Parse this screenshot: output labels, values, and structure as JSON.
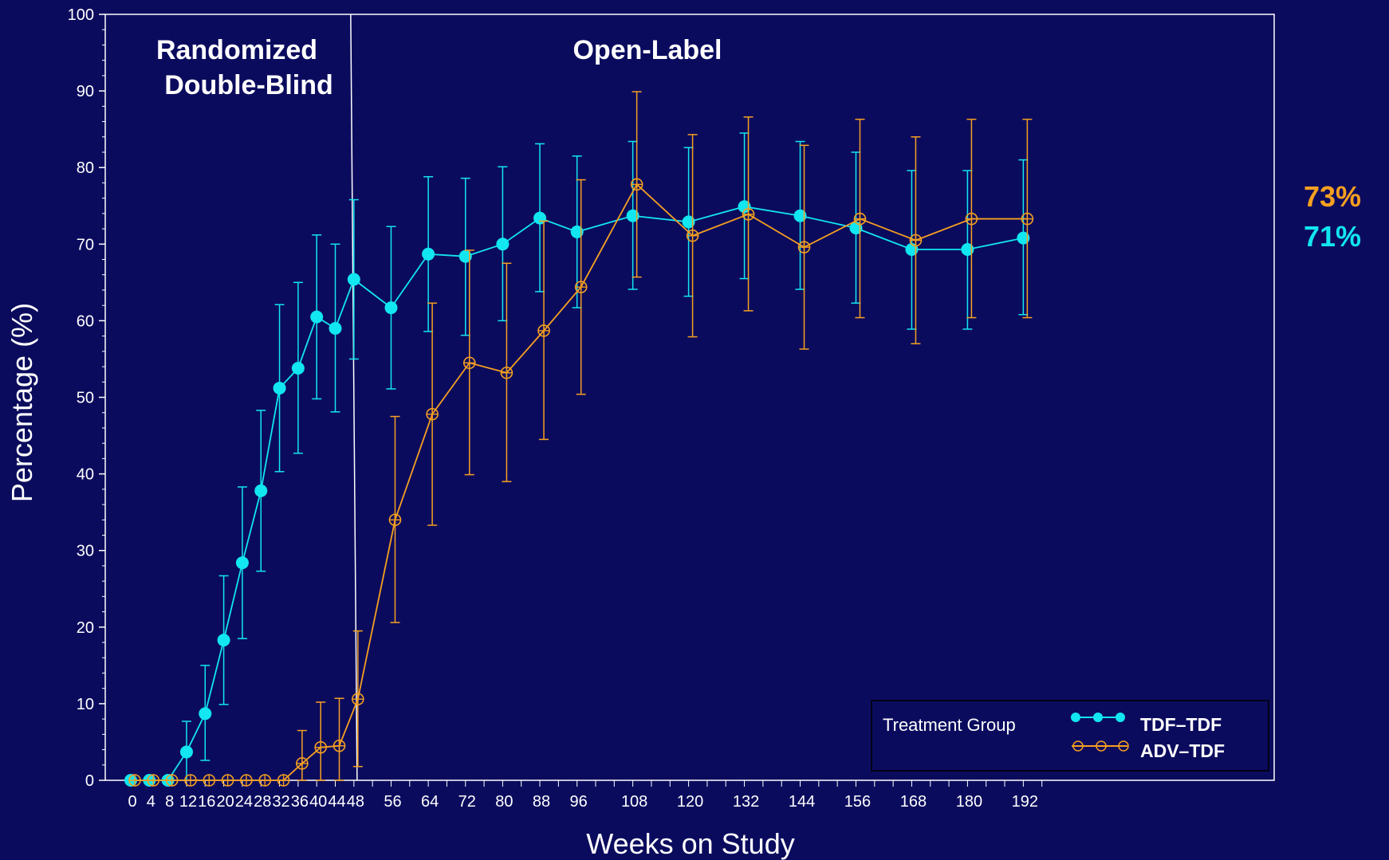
{
  "chart_data": {
    "type": "line",
    "xlabel": "Weeks on Study",
    "ylabel": "Percentage (%)",
    "ylim": [
      0,
      100
    ],
    "yticks": [
      0,
      10,
      20,
      30,
      40,
      50,
      60,
      70,
      80,
      90,
      100
    ],
    "x_tick_labels": [
      "0",
      "4",
      "8",
      "12",
      "16",
      "20",
      "24",
      "28",
      "32",
      "36",
      "40",
      "44",
      "48",
      "56",
      "64",
      "72",
      "80",
      "88",
      "96",
      "108",
      "120",
      "132",
      "144",
      "156",
      "168",
      "180",
      "192"
    ],
    "phases": [
      {
        "label_line1": "Randomized",
        "label_line2": "Double-Blind"
      },
      {
        "label_line1": "Open-Label",
        "label_line2": ""
      }
    ],
    "phase_boundary_week": 48,
    "series": [
      {
        "name": "TDF–TDF",
        "color": "#12e6f0",
        "marker": "filled-circle",
        "points": [
          {
            "x": 0,
            "y": 0,
            "lo": null,
            "hi": null
          },
          {
            "x": 4,
            "y": 0,
            "lo": null,
            "hi": null
          },
          {
            "x": 8,
            "y": 0,
            "lo": null,
            "hi": null
          },
          {
            "x": 12,
            "y": 3.7,
            "lo": 0,
            "hi": 7.7
          },
          {
            "x": 16,
            "y": 8.7,
            "lo": 2.6,
            "hi": 15
          },
          {
            "x": 20,
            "y": 18.3,
            "lo": 9.9,
            "hi": 26.7
          },
          {
            "x": 24,
            "y": 28.4,
            "lo": 18.5,
            "hi": 38.3
          },
          {
            "x": 28,
            "y": 37.8,
            "lo": 27.3,
            "hi": 48.3
          },
          {
            "x": 32,
            "y": 51.2,
            "lo": 40.3,
            "hi": 62.1
          },
          {
            "x": 36,
            "y": 53.8,
            "lo": 42.7,
            "hi": 65
          },
          {
            "x": 40,
            "y": 60.5,
            "lo": 49.8,
            "hi": 71.2
          },
          {
            "x": 44,
            "y": 59,
            "lo": 48.1,
            "hi": 70
          },
          {
            "x": 48,
            "y": 65.4,
            "lo": 55,
            "hi": 75.8
          },
          {
            "x": 56,
            "y": 61.7,
            "lo": 51.1,
            "hi": 72.3
          },
          {
            "x": 64,
            "y": 68.7,
            "lo": 58.6,
            "hi": 78.8
          },
          {
            "x": 72,
            "y": 68.4,
            "lo": 58.1,
            "hi": 78.6
          },
          {
            "x": 80,
            "y": 70,
            "lo": 60,
            "hi": 80.1
          },
          {
            "x": 88,
            "y": 73.4,
            "lo": 63.8,
            "hi": 83.1
          },
          {
            "x": 96,
            "y": 71.6,
            "lo": 61.7,
            "hi": 81.5
          },
          {
            "x": 108,
            "y": 73.7,
            "lo": 64.1,
            "hi": 83.4
          },
          {
            "x": 120,
            "y": 72.9,
            "lo": 63.2,
            "hi": 82.6
          },
          {
            "x": 132,
            "y": 74.9,
            "lo": 65.5,
            "hi": 84.5
          },
          {
            "x": 144,
            "y": 73.7,
            "lo": 64.1,
            "hi": 83.4
          },
          {
            "x": 156,
            "y": 72.1,
            "lo": 62.3,
            "hi": 82
          },
          {
            "x": 168,
            "y": 69.3,
            "lo": 58.9,
            "hi": 79.6
          },
          {
            "x": 180,
            "y": 69.3,
            "lo": 58.9,
            "hi": 79.6
          },
          {
            "x": 192,
            "y": 70.8,
            "lo": 60.8,
            "hi": 81
          }
        ]
      },
      {
        "name": "ADV–TDF",
        "color": "#f5a020",
        "marker": "crossed-open-circle",
        "points": [
          {
            "x": 0,
            "y": 0,
            "lo": null,
            "hi": null
          },
          {
            "x": 4,
            "y": 0,
            "lo": null,
            "hi": null
          },
          {
            "x": 8,
            "y": 0,
            "lo": null,
            "hi": null
          },
          {
            "x": 12,
            "y": 0,
            "lo": null,
            "hi": null
          },
          {
            "x": 16,
            "y": 0,
            "lo": null,
            "hi": null
          },
          {
            "x": 20,
            "y": 0,
            "lo": null,
            "hi": null
          },
          {
            "x": 24,
            "y": 0,
            "lo": null,
            "hi": null
          },
          {
            "x": 28,
            "y": 0,
            "lo": null,
            "hi": null
          },
          {
            "x": 32,
            "y": 0,
            "lo": null,
            "hi": null
          },
          {
            "x": 36,
            "y": 2.2,
            "lo": 0,
            "hi": 6.5
          },
          {
            "x": 40,
            "y": 4.3,
            "lo": 0,
            "hi": 10.2
          },
          {
            "x": 44,
            "y": 4.5,
            "lo": 0,
            "hi": 10.7
          },
          {
            "x": 48,
            "y": 10.6,
            "lo": 1.8,
            "hi": 19.5
          },
          {
            "x": 56,
            "y": 34,
            "lo": 20.6,
            "hi": 47.5
          },
          {
            "x": 64,
            "y": 47.8,
            "lo": 33.3,
            "hi": 62.3
          },
          {
            "x": 72,
            "y": 54.5,
            "lo": 39.9,
            "hi": 69.2
          },
          {
            "x": 80,
            "y": 53.2,
            "lo": 39,
            "hi": 67.5
          },
          {
            "x": 88,
            "y": 58.7,
            "lo": 44.5,
            "hi": 73
          },
          {
            "x": 96,
            "y": 64.4,
            "lo": 50.4,
            "hi": 78.4
          },
          {
            "x": 108,
            "y": 77.8,
            "lo": 65.7,
            "hi": 89.9
          },
          {
            "x": 120,
            "y": 71.1,
            "lo": 57.9,
            "hi": 84.3
          },
          {
            "x": 132,
            "y": 73.9,
            "lo": 61.3,
            "hi": 86.6
          },
          {
            "x": 144,
            "y": 69.6,
            "lo": 56.3,
            "hi": 82.9
          },
          {
            "x": 156,
            "y": 73.3,
            "lo": 60.4,
            "hi": 86.3
          },
          {
            "x": 168,
            "y": 70.5,
            "lo": 57,
            "hi": 84
          },
          {
            "x": 180,
            "y": 73.3,
            "lo": 60.4,
            "hi": 86.3
          },
          {
            "x": 192,
            "y": 73.3,
            "lo": 60.4,
            "hi": 86.3
          }
        ]
      }
    ],
    "legend": {
      "title": "Treatment Group",
      "position": "bottom-right",
      "entries": [
        "TDF–TDF",
        "ADV–TDF"
      ]
    },
    "final_values": [
      {
        "label": "73%",
        "color": "#f5a020"
      },
      {
        "label": "71%",
        "color": "#12e6f0"
      }
    ],
    "grid": false
  }
}
